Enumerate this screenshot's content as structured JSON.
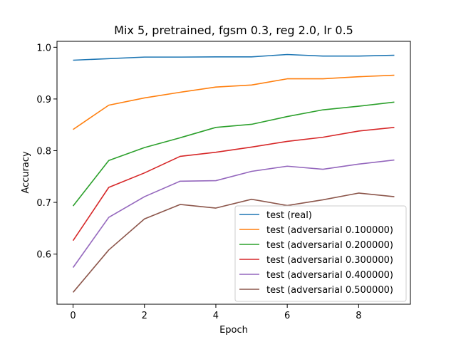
{
  "chart_data": {
    "type": "line",
    "title": "Mix 5, pretrained, fgsm 0.3, reg 2.0, lr 0.5",
    "xlabel": "Epoch",
    "ylabel": "Accuracy",
    "xlim": [
      -0.45,
      9.45
    ],
    "ylim": [
      0.503,
      1.0115
    ],
    "xticks": [
      0,
      2,
      4,
      6,
      8
    ],
    "yticks": [
      0.6,
      0.7,
      0.8,
      0.9,
      1.0
    ],
    "ytick_labels": [
      "0.6",
      "0.7",
      "0.8",
      "0.9",
      "1.0"
    ],
    "x": [
      0,
      1,
      2,
      3,
      4,
      5,
      6,
      7,
      8,
      9
    ],
    "grid": false,
    "legend_position": "lower-right",
    "series": [
      {
        "name": "test (real)",
        "color": "#1f77b4",
        "values": [
          0.975,
          0.978,
          0.981,
          0.981,
          0.9815,
          0.9815,
          0.986,
          0.983,
          0.983,
          0.9845
        ]
      },
      {
        "name": "test (adversarial 0.100000)",
        "color": "#ff7f0e",
        "values": [
          0.841,
          0.888,
          0.902,
          0.913,
          0.923,
          0.927,
          0.939,
          0.939,
          0.943,
          0.946
        ]
      },
      {
        "name": "test (adversarial 0.200000)",
        "color": "#2ca02c",
        "values": [
          0.693,
          0.781,
          0.806,
          0.825,
          0.845,
          0.851,
          0.866,
          0.879,
          0.886,
          0.894
        ]
      },
      {
        "name": "test (adversarial 0.300000)",
        "color": "#d62728",
        "values": [
          0.626,
          0.729,
          0.757,
          0.789,
          0.797,
          0.807,
          0.818,
          0.826,
          0.838,
          0.845
        ]
      },
      {
        "name": "test (adversarial 0.400000)",
        "color": "#9467bd",
        "values": [
          0.574,
          0.671,
          0.711,
          0.741,
          0.742,
          0.76,
          0.77,
          0.764,
          0.774,
          0.782
        ]
      },
      {
        "name": "test (adversarial 0.500000)",
        "color": "#8c564b",
        "values": [
          0.526,
          0.608,
          0.668,
          0.696,
          0.689,
          0.706,
          0.694,
          0.705,
          0.718,
          0.711
        ]
      }
    ]
  }
}
